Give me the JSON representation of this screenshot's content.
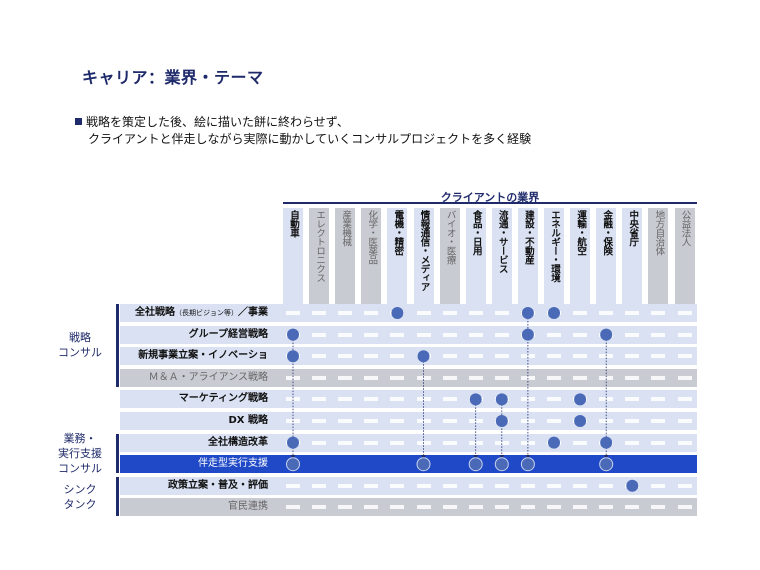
{
  "slide": {
    "title": "キャリア：業界・テーマ",
    "bullet_line1": "戦略を策定した後、絵に描いた餅に終わらせず、",
    "bullet_line2": "クライアントと伴走しながら実際に動かしていくコンサルプロジェクトを多く経験"
  },
  "matrix": {
    "client_header": "クライアントの業界",
    "columns": [
      {
        "label": "自動車",
        "active": true
      },
      {
        "label": "エレクトロニクス",
        "active": false
      },
      {
        "label": "産業機械",
        "active": false
      },
      {
        "label": "化学・医薬品",
        "active": false
      },
      {
        "label": "電機・精密",
        "active": true
      },
      {
        "label": "情報通信・メディア",
        "active": true
      },
      {
        "label": "バイオ・医療",
        "active": false
      },
      {
        "label": "食品・日用",
        "active": true
      },
      {
        "label": "流通・サービス",
        "active": true
      },
      {
        "label": "建設・不動産",
        "active": true
      },
      {
        "label": "エネルギー・環境",
        "active": true
      },
      {
        "label": "運輸・航空",
        "active": true
      },
      {
        "label": "金融・保険",
        "active": true
      },
      {
        "label": "中央省庁",
        "active": true
      },
      {
        "label": "地方自治体",
        "active": false
      },
      {
        "label": "公益法人",
        "active": false
      }
    ],
    "groups": [
      {
        "label_lines": [
          "戦略",
          "コンサル"
        ]
      },
      {
        "label_lines": [
          "業務・",
          "実行支援",
          "コンサル"
        ]
      },
      {
        "label_lines": [
          "シンク",
          "タンク"
        ]
      }
    ],
    "rows": [
      {
        "label": "全社戦略",
        "label_small": "（長期ビジョン等）",
        "label_tail": "／事業",
        "active": true,
        "highlight": false
      },
      {
        "label": "グループ経営戦略",
        "active": true,
        "highlight": false
      },
      {
        "label": "新規事業立案・イノベーショ",
        "active": true,
        "highlight": false
      },
      {
        "label": "Ｍ＆Ａ・アライアンス戦略",
        "active": false,
        "highlight": false
      },
      {
        "label": "マーケティング戦略",
        "active": true,
        "highlight": false
      },
      {
        "label": "DX 戦略",
        "active": true,
        "highlight": false
      },
      {
        "label": "全社構造改革",
        "active": true,
        "highlight": false
      },
      {
        "label": "伴走型実行支援",
        "active": true,
        "highlight": true
      },
      {
        "label": "政策立案・普及・評価",
        "active": true,
        "highlight": false
      },
      {
        "label": "官民連携",
        "active": false,
        "highlight": false
      }
    ],
    "dots": [
      {
        "row": 0,
        "col": 4
      },
      {
        "row": 0,
        "col": 9
      },
      {
        "row": 0,
        "col": 10
      },
      {
        "row": 1,
        "col": 0
      },
      {
        "row": 1,
        "col": 9
      },
      {
        "row": 1,
        "col": 12
      },
      {
        "row": 2,
        "col": 0
      },
      {
        "row": 2,
        "col": 5
      },
      {
        "row": 4,
        "col": 7
      },
      {
        "row": 4,
        "col": 8
      },
      {
        "row": 4,
        "col": 11
      },
      {
        "row": 5,
        "col": 8
      },
      {
        "row": 5,
        "col": 11
      },
      {
        "row": 6,
        "col": 0
      },
      {
        "row": 6,
        "col": 10
      },
      {
        "row": 6,
        "col": 12
      },
      {
        "row": 8,
        "col": 13
      }
    ],
    "arrows_to_highlight_cols": [
      0,
      5,
      7,
      8,
      9,
      12
    ],
    "colors": {
      "dot": "#4a6ab8",
      "dark": "#1f2a6b",
      "highlight": "#1f49c7",
      "active_bg": "#d9e1f2",
      "inactive_bg": "#c9cbd3"
    }
  }
}
